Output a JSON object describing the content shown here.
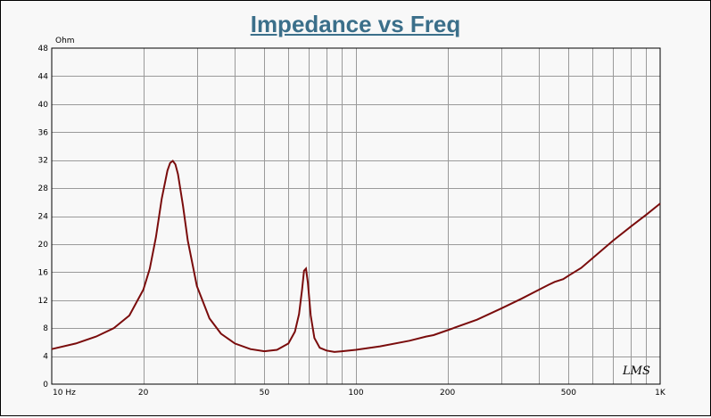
{
  "chart_data": {
    "type": "line",
    "title": "Impedance vs Freq",
    "y_unit": "Ohm",
    "x_scale": "log",
    "xlim": [
      10,
      1000
    ],
    "ylim": [
      0,
      48
    ],
    "grid": true,
    "x_ticks": [
      {
        "value": 10,
        "label": "10  Hz"
      },
      {
        "value": 20,
        "label": "20"
      },
      {
        "value": 50,
        "label": "50"
      },
      {
        "value": 100,
        "label": "100"
      },
      {
        "value": 200,
        "label": "200"
      },
      {
        "value": 500,
        "label": "500"
      },
      {
        "value": 1000,
        "label": "1K"
      }
    ],
    "y_ticks": [
      0,
      4,
      8,
      12,
      16,
      20,
      24,
      28,
      32,
      36,
      40,
      44,
      48
    ],
    "line_color": "#7a0c0c",
    "watermark": "LMS",
    "series": [
      {
        "x": [
          10,
          12,
          14,
          16,
          18,
          20,
          21,
          22,
          23,
          24,
          24.5,
          25,
          25.5,
          26,
          27,
          28,
          30,
          33,
          36,
          40,
          45,
          50,
          55,
          60,
          63,
          65,
          66.5,
          67.5,
          68.5,
          69.5,
          71,
          73,
          76,
          80,
          85,
          90,
          100,
          120,
          150,
          170,
          180,
          200,
          250,
          300,
          350,
          400,
          430,
          450,
          480,
          500,
          550,
          600,
          700,
          800,
          900,
          1000
        ],
        "y": [
          5.0,
          5.8,
          6.8,
          8.0,
          9.8,
          13.5,
          16.5,
          21.0,
          26.5,
          30.5,
          31.6,
          31.9,
          31.4,
          30.0,
          25.5,
          20.5,
          14.0,
          9.4,
          7.2,
          5.8,
          5.0,
          4.7,
          4.9,
          5.8,
          7.5,
          10.0,
          13.5,
          16.2,
          16.5,
          14.5,
          9.8,
          6.6,
          5.2,
          4.8,
          4.6,
          4.7,
          4.9,
          5.4,
          6.2,
          6.8,
          7.0,
          7.7,
          9.2,
          10.8,
          12.2,
          13.5,
          14.2,
          14.6,
          15.0,
          15.5,
          16.6,
          18.0,
          20.5,
          22.5,
          24.2,
          25.8
        ]
      }
    ]
  }
}
